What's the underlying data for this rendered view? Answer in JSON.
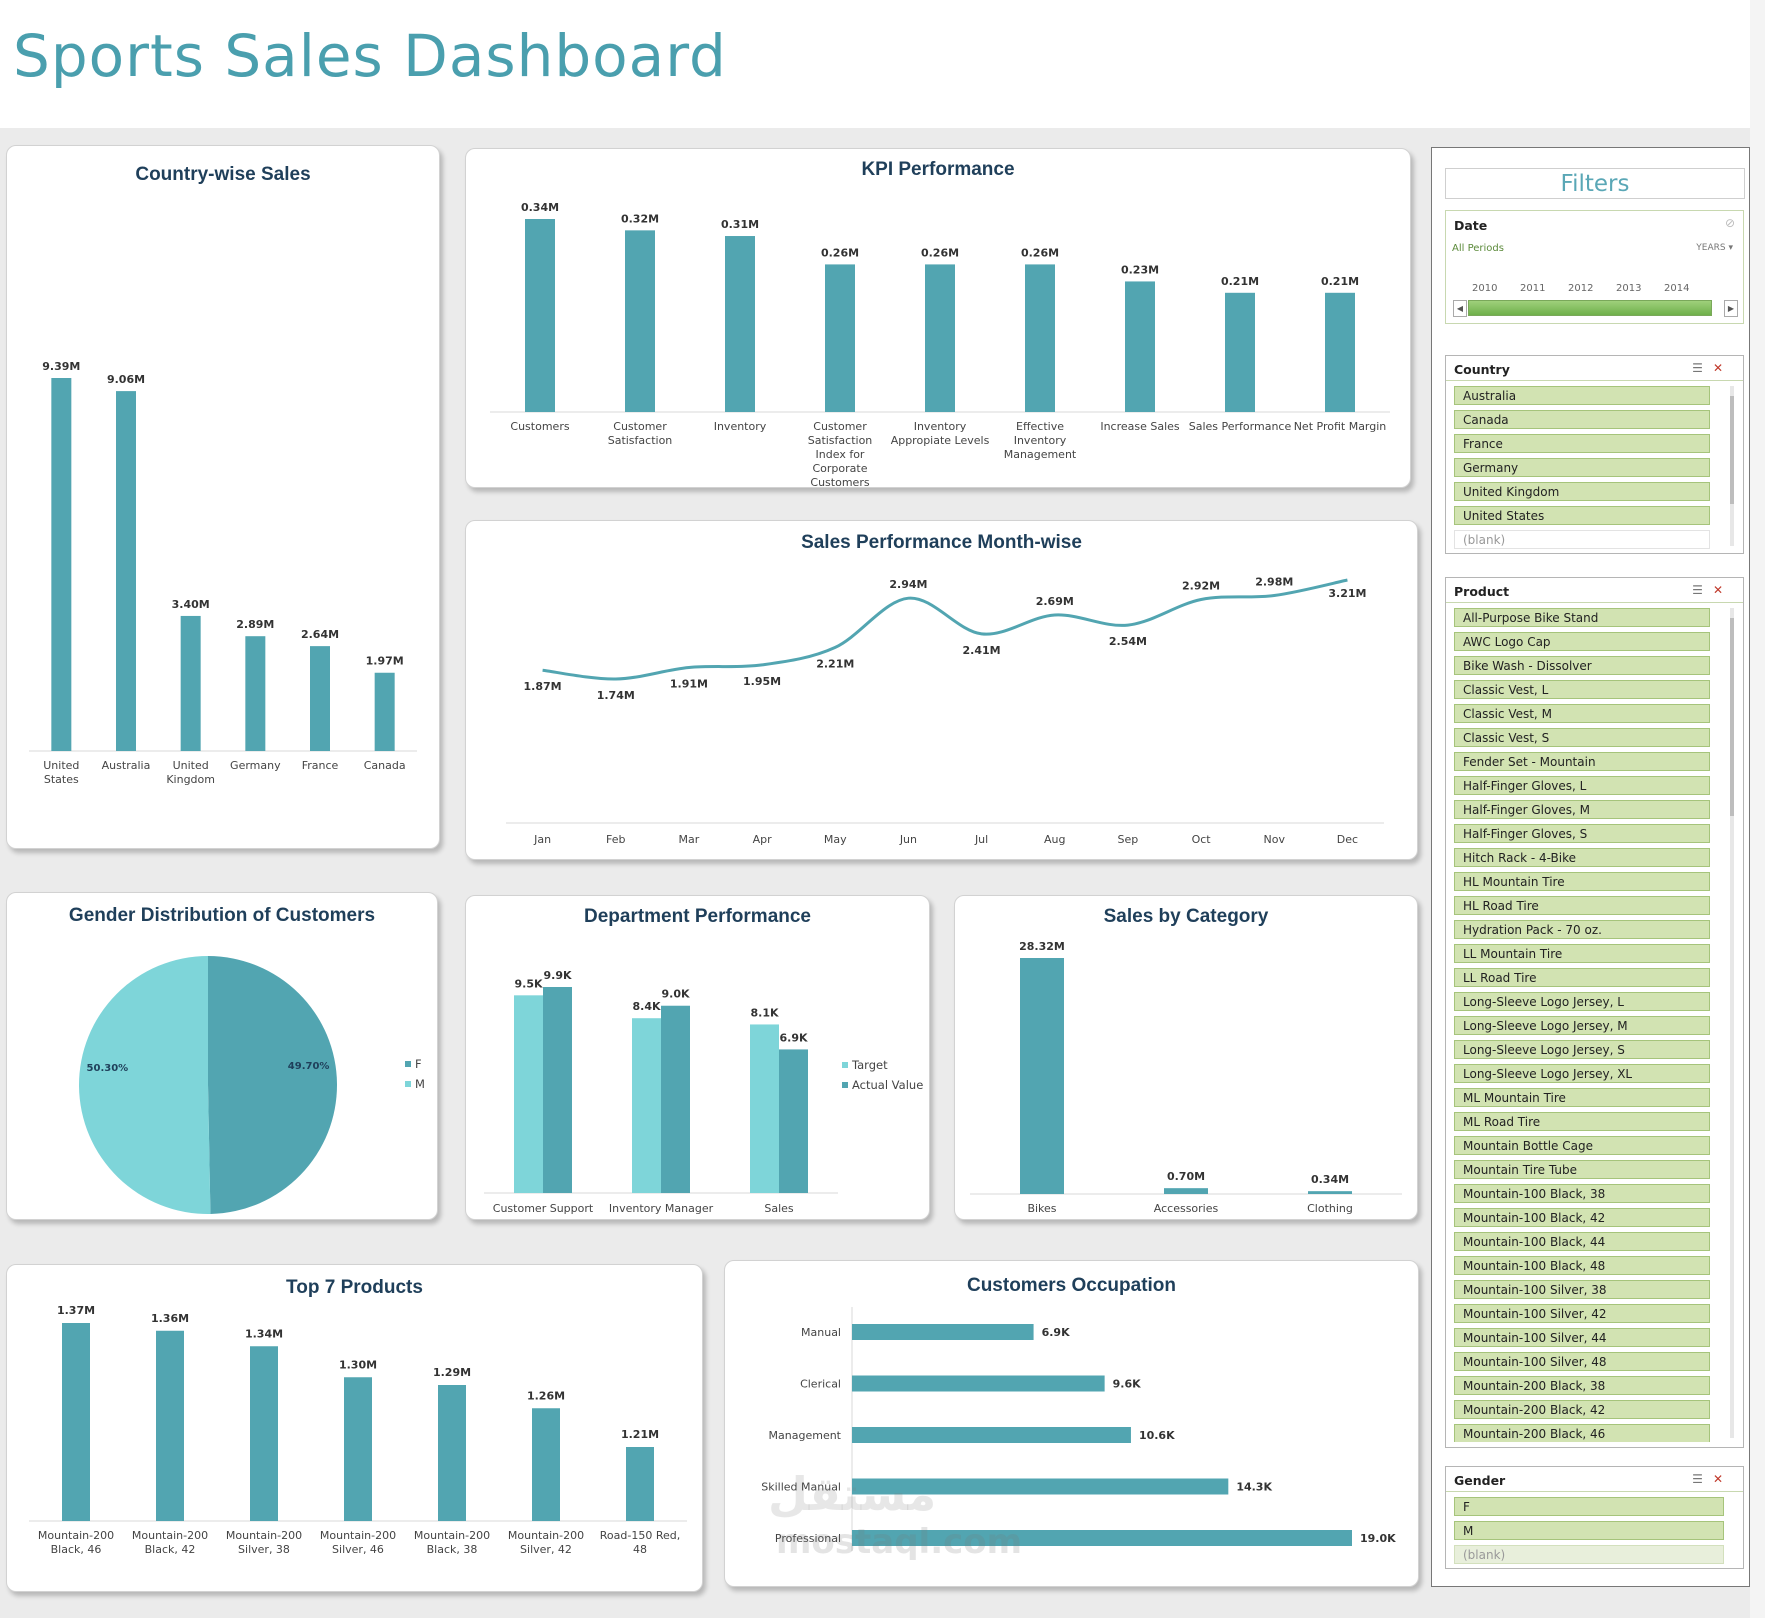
{
  "dashboard": {
    "title": "Sports Sales Dashboard"
  },
  "colors": {
    "bar": "#52a5b1",
    "bar_light": "#7ed5d9",
    "title": "#1f3f5a",
    "slicer_item": "#d2e3b2"
  },
  "country_sales": {
    "title": "Country-wise Sales",
    "chart_data": {
      "type": "bar",
      "categories": [
        "United States",
        "Australia",
        "United Kingdom",
        "Germany",
        "France",
        "Canada"
      ],
      "values": [
        9.39,
        9.06,
        3.4,
        2.89,
        2.64,
        1.97
      ],
      "labels": [
        "9.39M",
        "9.06M",
        "3.40M",
        "2.89M",
        "2.64M",
        "1.97M"
      ],
      "ylim": [
        0,
        10
      ]
    }
  },
  "kpi": {
    "title": "KPI Performance",
    "chart_data": {
      "type": "bar",
      "categories": [
        "Customers",
        "Customer Satisfaction",
        "Inventory",
        "Customer Satisfaction Index for Corporate Customers",
        "Inventory Appropiate Levels",
        "Effective Inventory Management",
        "Increase Sales",
        "Sales Performance",
        "Net Profit Margin"
      ],
      "values": [
        0.34,
        0.32,
        0.31,
        0.26,
        0.26,
        0.26,
        0.23,
        0.21,
        0.21
      ],
      "labels": [
        "0.34M",
        "0.32M",
        "0.31M",
        "0.26M",
        "0.26M",
        "0.26M",
        "0.23M",
        "0.21M",
        "0.21M"
      ],
      "ylim": [
        0,
        0.36
      ]
    }
  },
  "monthly": {
    "title": "Sales Performance Month-wise",
    "chart_data": {
      "type": "line",
      "categories": [
        "Jan",
        "Feb",
        "Mar",
        "Apr",
        "May",
        "Jun",
        "Jul",
        "Aug",
        "Sep",
        "Oct",
        "Nov",
        "Dec"
      ],
      "values": [
        1.87,
        1.74,
        1.91,
        1.95,
        2.21,
        2.94,
        2.41,
        2.69,
        2.54,
        2.92,
        2.98,
        3.21
      ],
      "labels": [
        "1.87M",
        "1.74M",
        "1.91M",
        "1.95M",
        "2.21M",
        "2.94M",
        "2.41M",
        "2.69M",
        "2.54M",
        "2.92M",
        "2.98M",
        "3.21M"
      ]
    }
  },
  "gender": {
    "title": "Gender Distribution of Customers",
    "chart_data": {
      "type": "pie",
      "categories": [
        "F",
        "M"
      ],
      "values": [
        49.7,
        50.3
      ],
      "labels": [
        "49.70%",
        "50.30%"
      ]
    }
  },
  "department": {
    "title": "Department Performance",
    "chart_data": {
      "type": "bar",
      "categories": [
        "Customer Support",
        "Inventory Manager",
        "Sales"
      ],
      "series": [
        {
          "name": "Target",
          "values": [
            9.5,
            8.4,
            8.1
          ],
          "labels": [
            "9.5K",
            "8.4K",
            "8.1K"
          ]
        },
        {
          "name": "Actual Value",
          "values": [
            9.9,
            9.0,
            6.9
          ],
          "labels": [
            "9.9K",
            "9.0K",
            "6.9K"
          ]
        }
      ]
    }
  },
  "category": {
    "title": "Sales by Category",
    "chart_data": {
      "type": "bar",
      "categories": [
        "Bikes",
        "Accessories",
        "Clothing"
      ],
      "values": [
        28.32,
        0.7,
        0.34
      ],
      "labels": [
        "28.32M",
        "0.70M",
        "0.34M"
      ]
    }
  },
  "top_products": {
    "title": "Top 7 Products",
    "chart_data": {
      "type": "bar",
      "categories": [
        "Mountain-200 Black, 46",
        "Mountain-200 Black, 42",
        "Mountain-200 Silver, 38",
        "Mountain-200 Silver, 46",
        "Mountain-200 Black, 38",
        "Mountain-200 Silver, 42",
        "Road-150 Red, 48"
      ],
      "values": [
        1.37,
        1.36,
        1.34,
        1.3,
        1.29,
        1.26,
        1.21
      ],
      "labels": [
        "1.37M",
        "1.36M",
        "1.34M",
        "1.30M",
        "1.29M",
        "1.26M",
        "1.21M"
      ]
    }
  },
  "occupation": {
    "title": "Customers Occupation",
    "chart_data": {
      "type": "bar",
      "orientation": "horizontal",
      "categories": [
        "Manual",
        "Clerical",
        "Management",
        "Skilled Manual",
        "Professional"
      ],
      "values": [
        6.9,
        9.6,
        10.6,
        14.3,
        19.0
      ],
      "labels": [
        "6.9K",
        "9.6K",
        "10.6K",
        "14.3K",
        "19.0K"
      ]
    }
  },
  "filters": {
    "title": "Filters",
    "date": {
      "label": "Date",
      "period": "All Periods",
      "unit": "YEARS",
      "years": [
        "2010",
        "2011",
        "2012",
        "2013",
        "2014"
      ]
    },
    "country": {
      "label": "Country",
      "items": [
        "Australia",
        "Canada",
        "France",
        "Germany",
        "United Kingdom",
        "United States",
        "(blank)"
      ]
    },
    "product": {
      "label": "Product",
      "items": [
        "All-Purpose Bike Stand",
        "AWC Logo Cap",
        "Bike Wash - Dissolver",
        "Classic Vest, L",
        "Classic Vest, M",
        "Classic Vest, S",
        "Fender Set - Mountain",
        "Half-Finger Gloves, L",
        "Half-Finger Gloves, M",
        "Half-Finger Gloves, S",
        "Hitch Rack - 4-Bike",
        "HL Mountain Tire",
        "HL Road Tire",
        "Hydration Pack - 70 oz.",
        "LL Mountain Tire",
        "LL Road Tire",
        "Long-Sleeve Logo Jersey, L",
        "Long-Sleeve Logo Jersey, M",
        "Long-Sleeve Logo Jersey, S",
        "Long-Sleeve Logo Jersey, XL",
        "ML Mountain Tire",
        "ML Road Tire",
        "Mountain Bottle Cage",
        "Mountain Tire Tube",
        "Mountain-100 Black, 38",
        "Mountain-100 Black, 42",
        "Mountain-100 Black, 44",
        "Mountain-100 Black, 48",
        "Mountain-100 Silver, 38",
        "Mountain-100 Silver, 42",
        "Mountain-100 Silver, 44",
        "Mountain-100 Silver, 48",
        "Mountain-200 Black, 38",
        "Mountain-200 Black, 42",
        "Mountain-200 Black, 46"
      ]
    },
    "gender": {
      "label": "Gender",
      "items": [
        "F",
        "M",
        "(blank)"
      ]
    }
  },
  "watermark": {
    "arabic": "مستقل",
    "latin": "mostaql.com"
  }
}
